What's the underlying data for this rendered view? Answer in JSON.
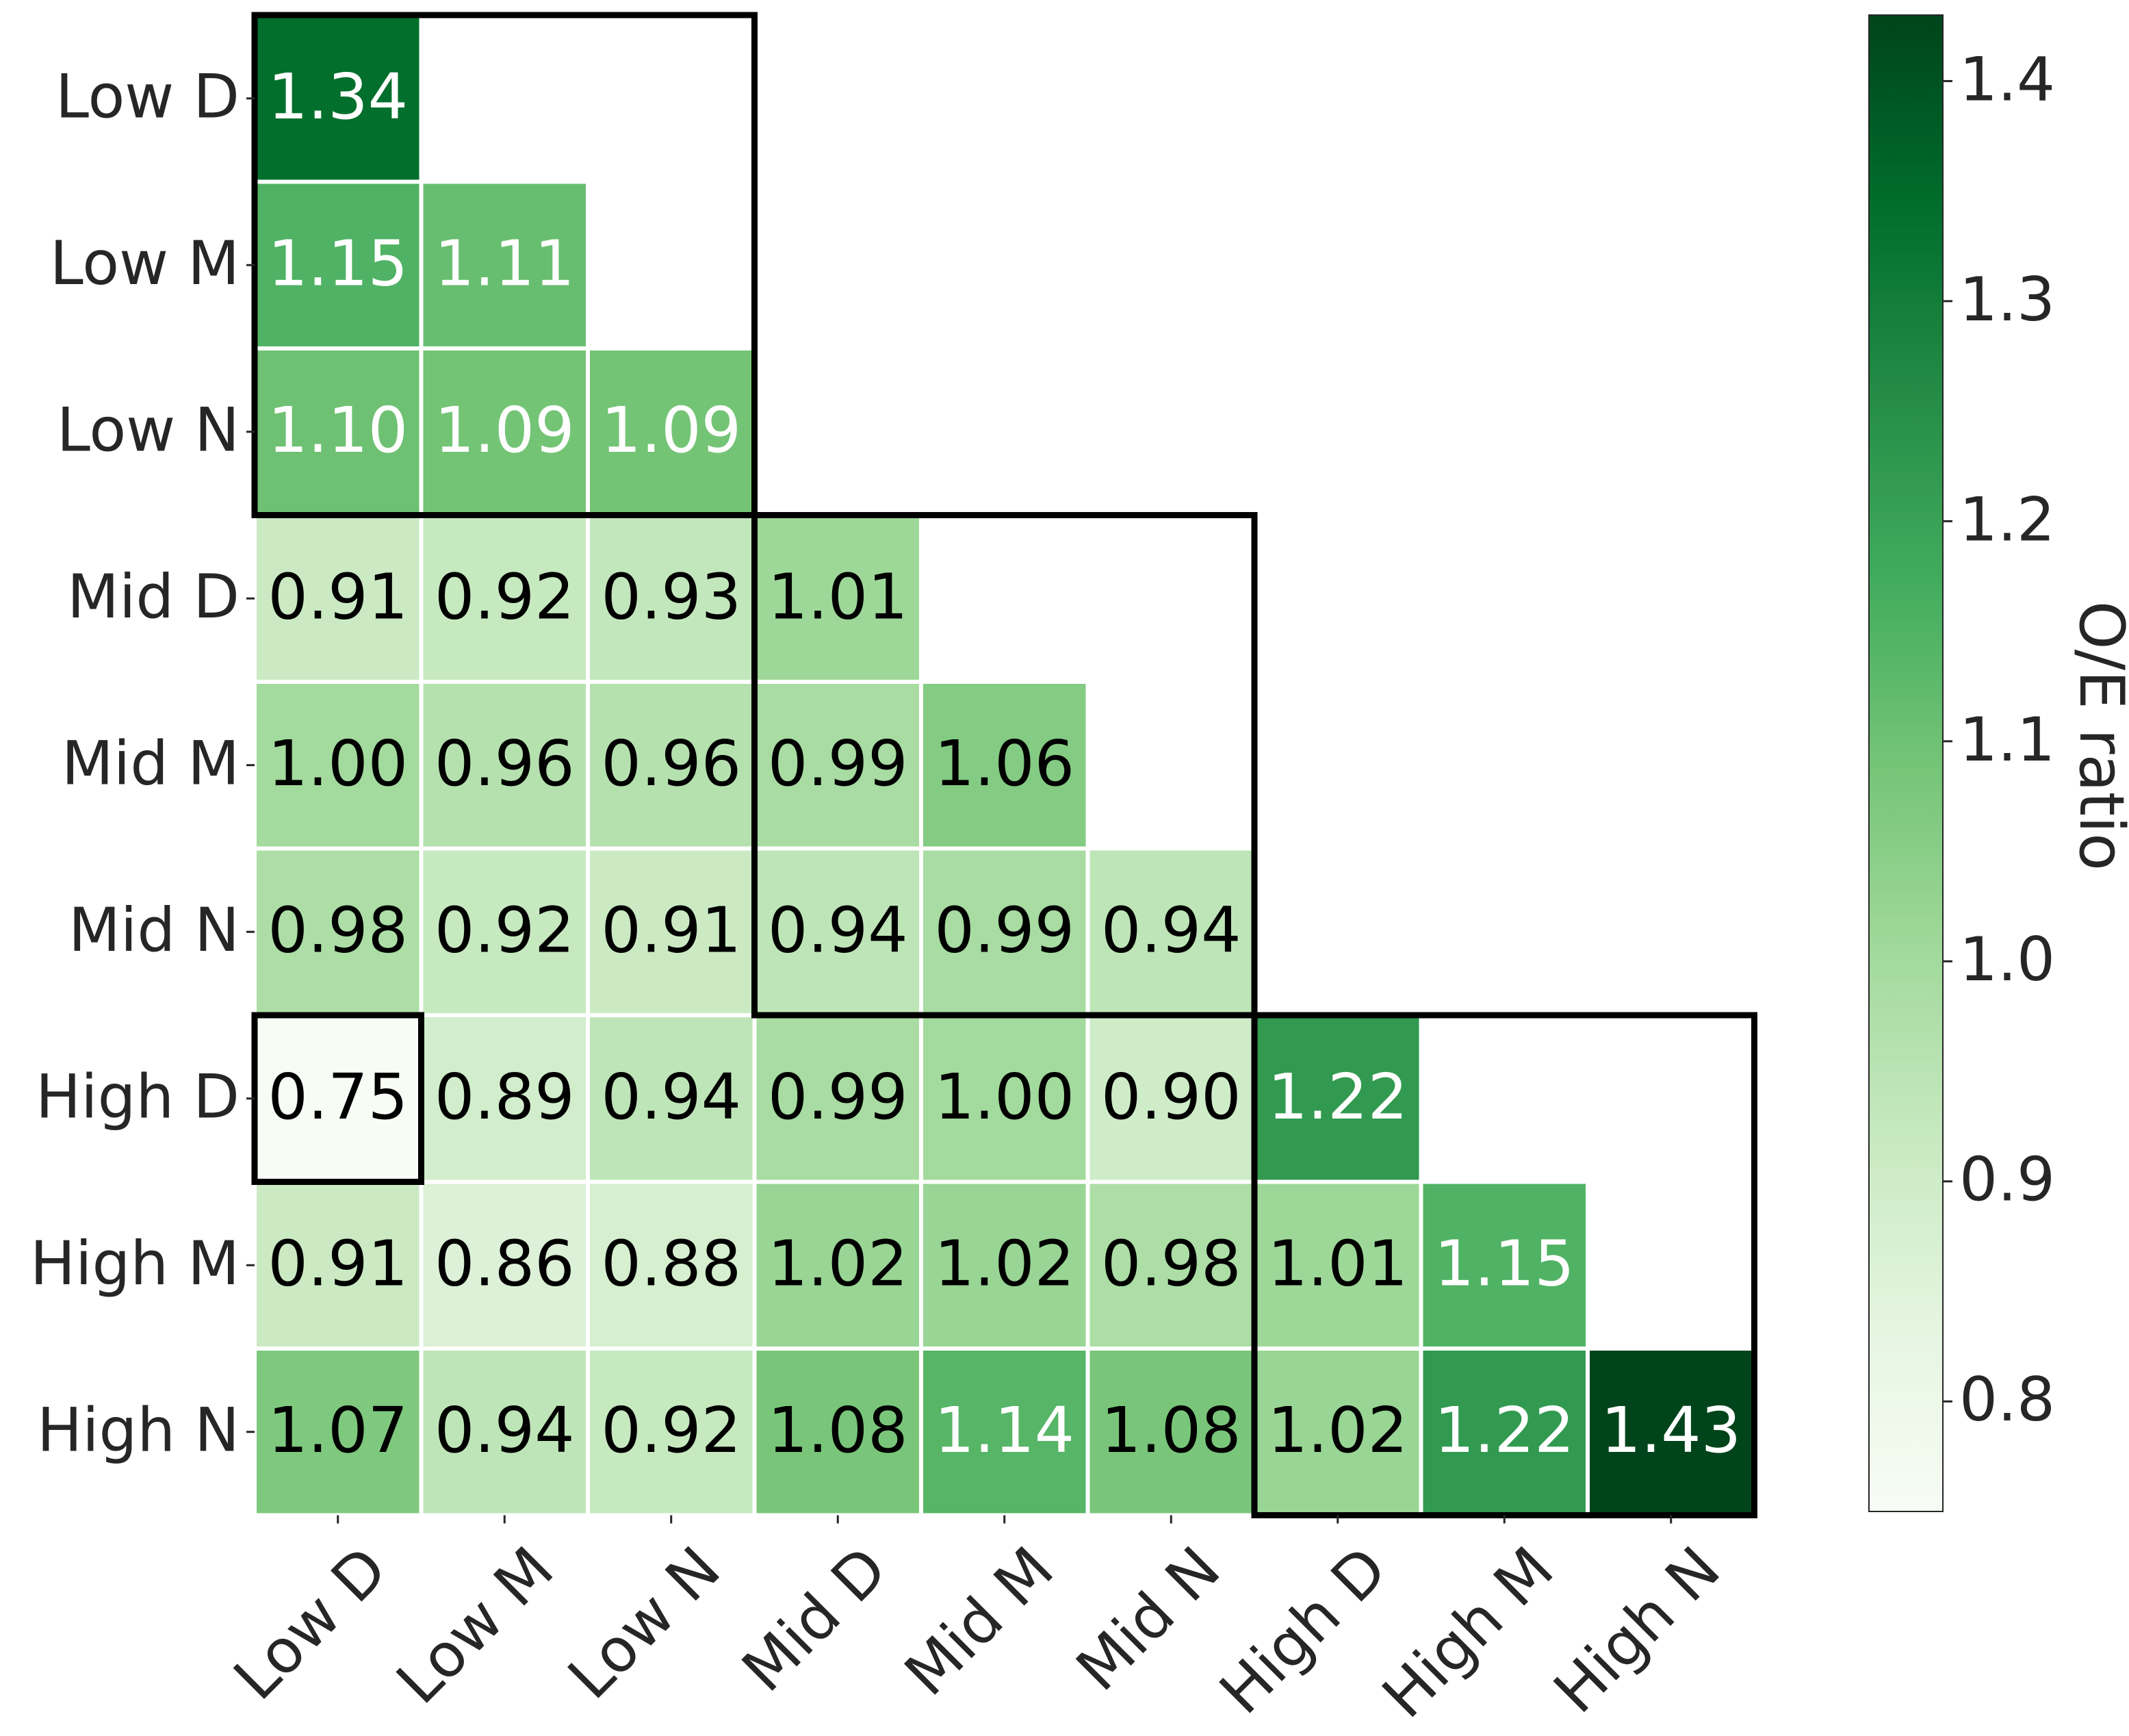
{
  "chart_data": {
    "type": "heatmap",
    "categories": [
      "Low D",
      "Low M",
      "Low N",
      "Mid D",
      "Mid M",
      "Mid N",
      "High D",
      "High M",
      "High N"
    ],
    "matrix_lower_triangle": [
      [
        1.34
      ],
      [
        1.15,
        1.11
      ],
      [
        1.1,
        1.09,
        1.09
      ],
      [
        0.91,
        0.92,
        0.93,
        1.01
      ],
      [
        1.0,
        0.96,
        0.96,
        0.99,
        1.06
      ],
      [
        0.98,
        0.92,
        0.91,
        0.94,
        0.99,
        0.94
      ],
      [
        0.75,
        0.89,
        0.94,
        0.99,
        1.0,
        0.9,
        1.22
      ],
      [
        0.91,
        0.86,
        0.88,
        1.02,
        1.02,
        0.98,
        1.01,
        1.15
      ],
      [
        1.07,
        0.94,
        0.92,
        1.08,
        1.14,
        1.08,
        1.02,
        1.22,
        1.43
      ]
    ],
    "value_format_decimals": 2,
    "colormap": "Greens",
    "color_min": 0.75,
    "color_max": 1.43,
    "colorbar": {
      "label": "O/E ratio",
      "ticks": [
        0.8,
        0.9,
        1.0,
        1.1,
        1.2,
        1.3,
        1.4
      ],
      "tick_labels": [
        "0.8",
        "0.9",
        "1.0",
        "1.1",
        "1.2",
        "1.3",
        "1.4"
      ]
    },
    "highlight_blocks": [
      {
        "rows": [
          "Low D",
          "Low N"
        ],
        "cols": [
          "Low D",
          "Low N"
        ]
      },
      {
        "rows": [
          "Mid D",
          "Mid N"
        ],
        "cols": [
          "Mid D",
          "Mid N"
        ]
      },
      {
        "rows": [
          "High D",
          "High N"
        ],
        "cols": [
          "High D",
          "High N"
        ]
      }
    ],
    "highlight_cells": [
      {
        "row": "High D",
        "col": "Low D"
      }
    ],
    "xlabel": "",
    "ylabel": "",
    "title": "",
    "x_tick_rotation_deg": 45
  }
}
